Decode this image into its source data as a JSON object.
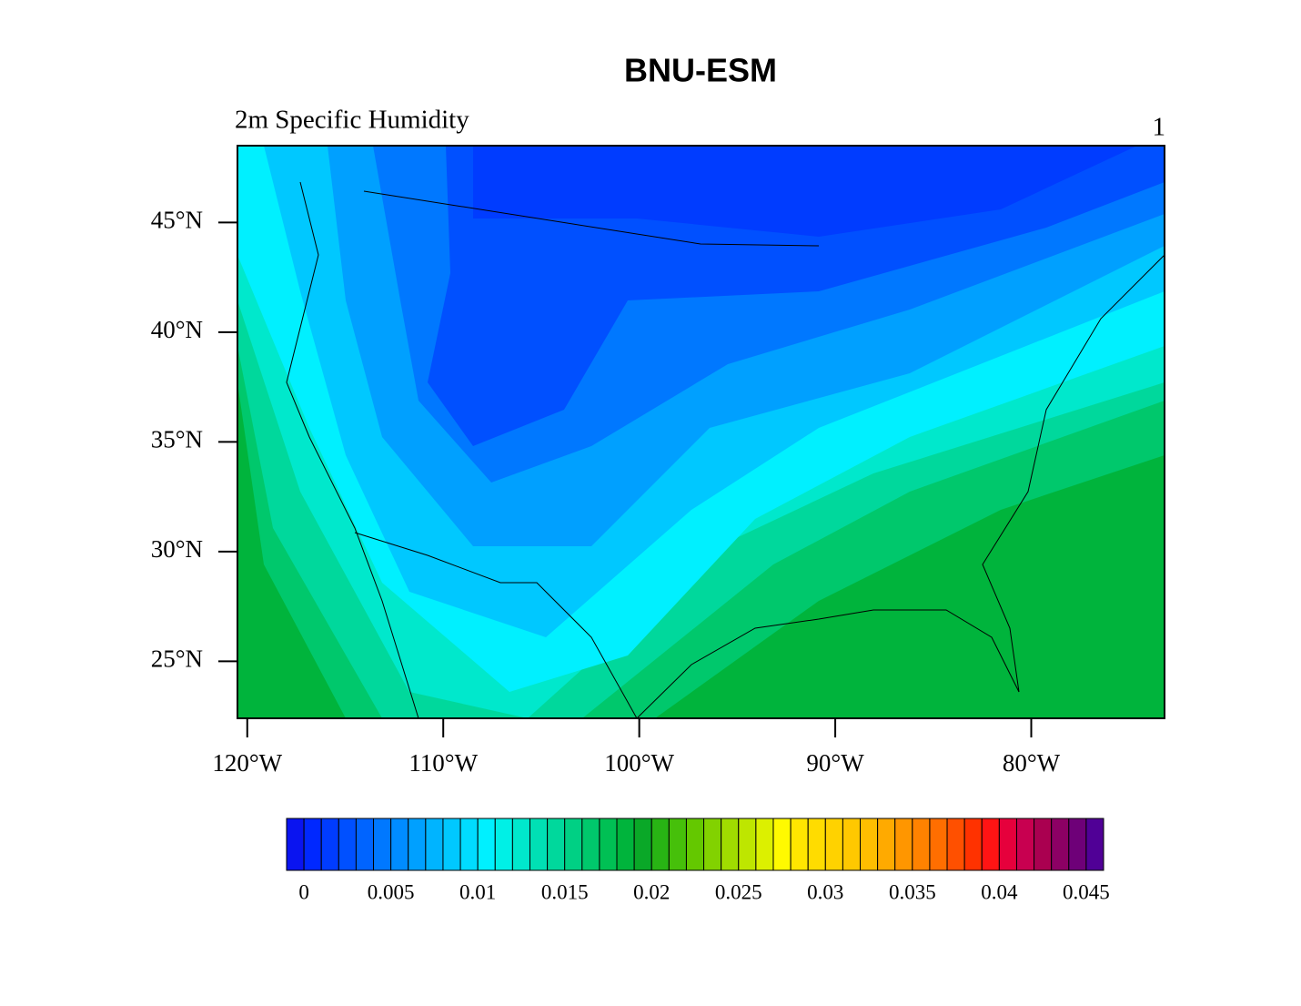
{
  "chart_data": {
    "type": "contour-map",
    "title": "BNU-ESM",
    "subtitle": "2m Specific Humidity",
    "panel_label": "1",
    "xlim": [
      -120.5,
      -73.2
    ],
    "ylim": [
      22.4,
      48.5
    ],
    "xticks": [
      {
        "value": -120,
        "label": "120°W"
      },
      {
        "value": -110,
        "label": "110°W"
      },
      {
        "value": -100,
        "label": "100°W"
      },
      {
        "value": -90,
        "label": "90°W"
      },
      {
        "value": -80,
        "label": "80°W"
      }
    ],
    "yticks": [
      {
        "value": 25,
        "label": "25°N"
      },
      {
        "value": 30,
        "label": "30°N"
      },
      {
        "value": 35,
        "label": "35°N"
      },
      {
        "value": 40,
        "label": "40°N"
      },
      {
        "value": 45,
        "label": "45°N"
      }
    ],
    "colorbar": {
      "lim": [
        -0.001,
        0.046
      ],
      "ticks": [
        0,
        0.005,
        0.01,
        0.015,
        0.02,
        0.025,
        0.03,
        0.035,
        0.04,
        0.045
      ],
      "colors": [
        "#0a14f0",
        "#0028ff",
        "#003cff",
        "#0050ff",
        "#0064ff",
        "#0078ff",
        "#008cff",
        "#00a0ff",
        "#00b4ff",
        "#00c8ff",
        "#00dcff",
        "#00f0ff",
        "#00f0e6",
        "#00e8cc",
        "#00e0b4",
        "#00d89c",
        "#00d084",
        "#00c86c",
        "#00c054",
        "#00b43c",
        "#0aa828",
        "#28b414",
        "#46c00a",
        "#64c800",
        "#82d200",
        "#a0dc00",
        "#bee600",
        "#dcf000",
        "#fffa00",
        "#ffe600",
        "#ffdc00",
        "#ffd200",
        "#ffc800",
        "#ffbe00",
        "#ffaa00",
        "#ff9600",
        "#ff8200",
        "#ff6e00",
        "#ff5000",
        "#ff3200",
        "#ff1414",
        "#e6003c",
        "#c80050",
        "#aa0050",
        "#8c0064",
        "#6e0078",
        "#500096"
      ]
    }
  }
}
